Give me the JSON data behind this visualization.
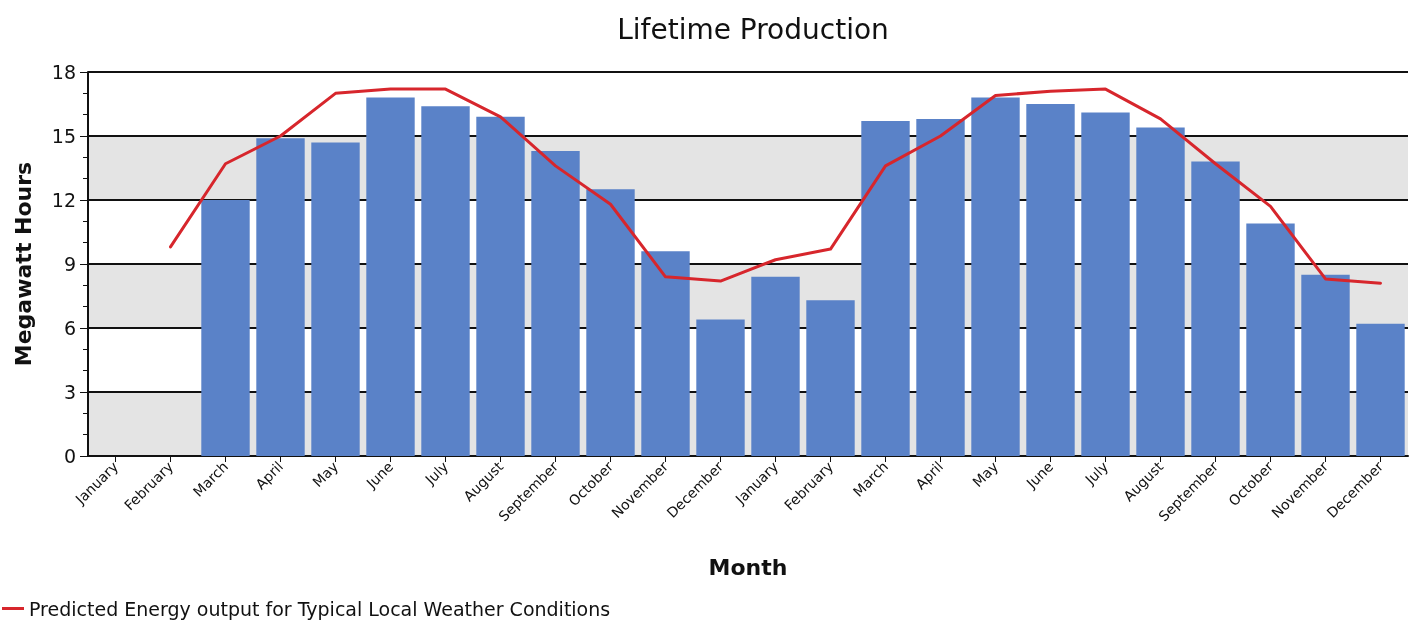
{
  "chart_data": {
    "type": "bar",
    "title": "Lifetime Production",
    "xlabel": "Month",
    "ylabel": "Megawatt Hours",
    "categories": [
      "January",
      "February",
      "March",
      "April",
      "May",
      "June",
      "July",
      "August",
      "September",
      "October",
      "November",
      "December",
      "January",
      "February",
      "March",
      "April",
      "May",
      "June",
      "July",
      "August",
      "September",
      "October",
      "November",
      "December"
    ],
    "series": [
      {
        "color": "#5a82c8",
        "values": [
          null,
          null,
          12.0,
          14.9,
          14.7,
          16.8,
          16.4,
          15.9,
          14.3,
          12.5,
          9.6,
          6.4,
          8.4,
          7.3,
          15.7,
          15.8,
          16.8,
          16.5,
          16.1,
          15.4,
          13.8,
          10.9,
          8.5,
          6.2
        ]
      },
      {
        "type": "line",
        "name": "Predicted Energy output for Typical Local Weather Conditions",
        "color": "#d7262c",
        "marker": "none",
        "line_style": "solid",
        "values": [
          null,
          9.8,
          13.7,
          15.0,
          17.0,
          17.2,
          17.2,
          15.9,
          13.6,
          11.8,
          8.4,
          8.2,
          9.2,
          9.7,
          13.6,
          15.0,
          16.9,
          17.1,
          17.2,
          15.8,
          13.7,
          11.7,
          8.3,
          8.1
        ]
      }
    ],
    "ylim": [
      0,
      18
    ],
    "yticks": [
      0,
      {
        "value": 1,
        "label": null
      },
      {
        "value": 2,
        "label": null
      },
      3,
      {
        "value": 4,
        "label": null
      },
      {
        "value": 5,
        "label": null
      },
      6,
      {
        "value": 7,
        "label": null
      },
      {
        "value": 8,
        "label": null
      },
      9,
      {
        "value": 10,
        "label": null
      },
      {
        "value": 11,
        "label": null
      },
      12,
      {
        "value": 13,
        "label": null
      },
      {
        "value": 14,
        "label": null
      },
      15,
      {
        "value": 16,
        "label": null
      },
      {
        "value": 17,
        "label": null
      },
      18
    ],
    "grid": "y",
    "legend": "bottom left"
  }
}
